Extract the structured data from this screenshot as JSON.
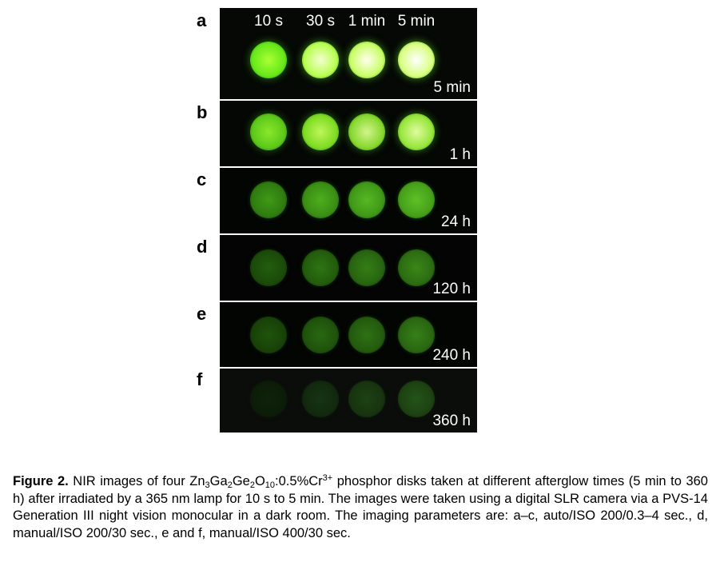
{
  "figure": {
    "column_headers": [
      "10 s",
      "30 s",
      "1 min",
      "5 min"
    ],
    "panels": [
      {
        "letter": "a",
        "time": "5 min",
        "disks": [
          {
            "core": "#aaff33",
            "mid": "#66e81a",
            "edge": "#2b7a0a"
          },
          {
            "core": "#f2ffd0",
            "mid": "#b8ff50",
            "edge": "#3c8a12"
          },
          {
            "core": "#ffffee",
            "mid": "#c8ff66",
            "edge": "#3f9214"
          },
          {
            "core": "#ffffff",
            "mid": "#d8ff80",
            "edge": "#449a18"
          }
        ]
      },
      {
        "letter": "b",
        "time": "1 h",
        "disks": [
          {
            "core": "#8ae82a",
            "mid": "#5cc81a",
            "edge": "#23600a"
          },
          {
            "core": "#bff55a",
            "mid": "#7ddc22",
            "edge": "#2e720e"
          },
          {
            "core": "#d2f48c",
            "mid": "#86d82e",
            "edge": "#2f720f"
          },
          {
            "core": "#e0fba0",
            "mid": "#96e63a",
            "edge": "#337a12"
          }
        ]
      },
      {
        "letter": "c",
        "time": "24 h",
        "disks": [
          {
            "core": "#3e9a18",
            "mid": "#2f7c10",
            "edge": "#123d05"
          },
          {
            "core": "#4cae1e",
            "mid": "#3a8e14",
            "edge": "#164807"
          },
          {
            "core": "#56b822",
            "mid": "#409818",
            "edge": "#184c08"
          },
          {
            "core": "#5ec026",
            "mid": "#46a01a",
            "edge": "#1a5008"
          }
        ]
      },
      {
        "letter": "d",
        "time": "120 h",
        "disks": [
          {
            "core": "#235e0e",
            "mid": "#1b4a0a",
            "edge": "#0a2203"
          },
          {
            "core": "#2e7412",
            "mid": "#235c0d",
            "edge": "#0d2a04"
          },
          {
            "core": "#347e16",
            "mid": "#286410",
            "edge": "#0e2c05"
          },
          {
            "core": "#3a8618",
            "mid": "#2c6c12",
            "edge": "#102e05"
          }
        ]
      },
      {
        "letter": "e",
        "time": "240 h",
        "disks": [
          {
            "core": "#1f540c",
            "mid": "#184208",
            "edge": "#081c02"
          },
          {
            "core": "#286810",
            "mid": "#1f520c",
            "edge": "#0a2403"
          },
          {
            "core": "#2e7214",
            "mid": "#245a0e",
            "edge": "#0c2804"
          },
          {
            "core": "#358018",
            "mid": "#2a6612",
            "edge": "#0e2c05"
          }
        ]
      },
      {
        "letter": "f",
        "time": "360 h",
        "disks": [
          {
            "core": "#0e220a",
            "mid": "#0c1c08",
            "edge": "#0b140a"
          },
          {
            "core": "#163414",
            "mid": "#12290e",
            "edge": "#0c160a"
          },
          {
            "core": "#1d4214",
            "mid": "#173410",
            "edge": "#0d180a"
          },
          {
            "core": "#245418",
            "mid": "#1d4212",
            "edge": "#0e1a0a"
          }
        ]
      }
    ],
    "panel_backgrounds": [
      "#050805",
      "#040704",
      "#030503",
      "#030403",
      "#030503",
      "#0b0d0b"
    ]
  },
  "caption": {
    "label": "Figure 2.",
    "text_before_formula": " NIR images of four ",
    "formula": [
      {
        "t": "Zn",
        "s": ""
      },
      {
        "t": "3",
        "s": "sub"
      },
      {
        "t": "Ga",
        "s": ""
      },
      {
        "t": "2",
        "s": "sub"
      },
      {
        "t": "Ge",
        "s": ""
      },
      {
        "t": "2",
        "s": "sub"
      },
      {
        "t": "O",
        "s": ""
      },
      {
        "t": "10",
        "s": "sub"
      },
      {
        "t": ":0.5%Cr",
        "s": ""
      },
      {
        "t": "3+",
        "s": "sup"
      }
    ],
    "text_after_formula": " phosphor disks taken at different afterglow times (5 min to 360 h) after irradiated by a 365 nm lamp for 10 s to 5 min. The images were taken using a digital SLR camera via a PVS-14 Generation III night vision monocular in a dark room. The imaging parameters are: a–c, auto/ISO 200/0.3–4 sec., d, manual/ISO 200/30 sec., e and f, manual/ISO 400/30 sec."
  }
}
